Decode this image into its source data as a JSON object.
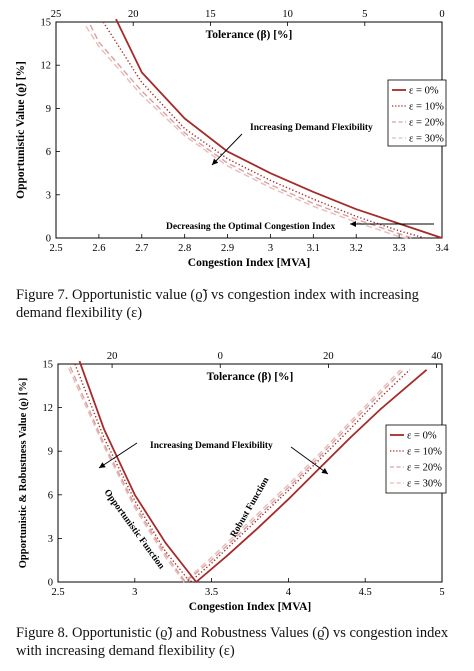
{
  "figures": [
    {
      "caption": "Figure 7.  Opportunistic value (ϱ̃) vs congestion index with increasing demand flexibility (ε)",
      "chart_data": {
        "type": "line",
        "xlabel": "Congestion Index [MVA]",
        "ylabel": "Opportunistic Value (ϱ̃) [%]",
        "x2label": "Tolerance (β) [%]",
        "xlim": [
          2.5,
          3.4
        ],
        "ylim": [
          0,
          15
        ],
        "x2lim": [
          25,
          0
        ],
        "x_ticks": [
          2.5,
          2.6,
          2.7,
          2.8,
          2.9,
          3.0,
          3.1,
          3.2,
          3.3,
          3.4
        ],
        "x_tick_labels": [
          "2.5",
          "2.6",
          "2.7",
          "2.8",
          "2.9",
          "3",
          "3.1",
          "3.2",
          "3.3",
          "3.4"
        ],
        "y_ticks": [
          0,
          3,
          6,
          9,
          12,
          15
        ],
        "y_tick_labels": [
          "0",
          "3",
          "6",
          "9",
          "12",
          "15"
        ],
        "x2_ticks": [
          25,
          20,
          15,
          10,
          5,
          0
        ],
        "x2_tick_labels": [
          "25",
          "20",
          "15",
          "10",
          "5",
          "0"
        ],
        "legend_position": "right",
        "grid": false,
        "annotations": [
          "Increasing Demand Flexibility",
          "Decreasing the Optimal Congestion Index"
        ],
        "series": [
          {
            "name": "ε = 0%",
            "style": "solid",
            "color": "#a52a2a",
            "x": [
              2.64,
              2.7,
              2.8,
              2.9,
              3.0,
              3.1,
              3.2,
              3.3,
              3.4
            ],
            "y": [
              15.2,
              11.5,
              8.3,
              6.0,
              4.5,
              3.2,
              2.0,
              1.0,
              0.0
            ]
          },
          {
            "name": "ε = 10%",
            "style": "dotted",
            "color": "#a52a2a",
            "x": [
              2.61,
              2.7,
              2.8,
              2.9,
              3.0,
              3.1,
              3.2,
              3.3,
              3.36
            ],
            "y": [
              15.0,
              10.8,
              7.6,
              5.5,
              4.0,
              2.7,
              1.5,
              0.5,
              0.0
            ]
          },
          {
            "name": "ε = 20%",
            "style": "dashed",
            "color": "#d9a0a0",
            "x": [
              2.58,
              2.6,
              2.7,
              2.8,
              2.9,
              3.0,
              3.1,
              3.2,
              3.3,
              3.33
            ],
            "y": [
              14.8,
              13.6,
              10.2,
              7.3,
              5.2,
              3.7,
              2.4,
              1.3,
              0.3,
              0.0
            ]
          },
          {
            "name": "ε = 30%",
            "style": "dashed",
            "color": "#e8bcbc",
            "x": [
              2.57,
              2.6,
              2.7,
              2.8,
              2.9,
              3.0,
              3.1,
              3.2,
              3.3,
              3.32
            ],
            "y": [
              14.7,
              13.3,
              9.9,
              7.1,
              5.0,
              3.5,
              2.2,
              1.1,
              0.1,
              0.0
            ]
          }
        ]
      }
    },
    {
      "caption": "Figure 8.  Opportunistic (ϱ̃) and Robustness Values (ϱ̂) vs congestion index with increasing demand flexibility (ε)",
      "chart_data": {
        "type": "line",
        "xlabel": "Congestion Index [MVA]",
        "ylabel": "Opportunistic & Robustness Value (ϱ) [%]",
        "x2label": "Tolerance (β) [%]",
        "xlim": [
          2.5,
          5
        ],
        "ylim": [
          0,
          15
        ],
        "x2lim": [
          30,
          -41
        ],
        "x_ticks": [
          2.5,
          3.0,
          3.5,
          4.0,
          4.5,
          5.0
        ],
        "x_tick_labels": [
          "2.5",
          "3",
          "3.5",
          "4",
          "4.5",
          "5"
        ],
        "y_ticks": [
          0,
          3,
          6,
          9,
          12,
          15
        ],
        "y_tick_labels": [
          "0",
          "3",
          "6",
          "9",
          "12",
          "15"
        ],
        "x2_ticks": [
          20,
          0,
          -20,
          -40
        ],
        "x2_tick_labels": [
          "20",
          "0",
          "20",
          "40"
        ],
        "legend_position": "right",
        "grid": false,
        "annotations": [
          "Increasing Demand Flexibility",
          "Opportunistic Function",
          "Robust Function"
        ],
        "series": [
          {
            "name": "ε = 0%",
            "style": "solid",
            "color": "#a52a2a",
            "x": [
              2.64,
              2.8,
              3.0,
              3.2,
              3.4,
              3.6,
              3.8,
              4.0,
              4.2,
              4.4,
              4.6,
              4.9
            ],
            "y": [
              15.2,
              10.5,
              6.0,
              2.7,
              0.0,
              1.8,
              3.7,
              5.7,
              7.8,
              9.9,
              11.9,
              14.6
            ]
          },
          {
            "name": "ε = 10%",
            "style": "dotted",
            "color": "#a52a2a",
            "x": [
              2.61,
              2.8,
              3.0,
              3.2,
              3.36,
              3.5,
              3.7,
              4.0,
              4.2,
              4.4,
              4.6,
              4.79
            ],
            "y": [
              15.0,
              9.9,
              5.6,
              2.1,
              0.0,
              1.3,
              3.3,
              6.3,
              8.4,
              10.5,
              12.7,
              14.6
            ]
          },
          {
            "name": "ε = 20%",
            "style": "dashed",
            "color": "#d9a0a0",
            "x": [
              2.58,
              2.8,
              3.0,
              3.2,
              3.33,
              3.5,
              3.7,
              4.0,
              4.2,
              4.4,
              4.6,
              4.75
            ],
            "y": [
              14.8,
              9.5,
              5.3,
              1.9,
              0.0,
              1.5,
              3.5,
              6.5,
              8.6,
              10.8,
              13.0,
              14.6
            ]
          },
          {
            "name": "ε = 30%",
            "style": "dashed",
            "color": "#e8bcbc",
            "x": [
              2.57,
              2.8,
              3.0,
              3.2,
              3.32,
              3.5,
              3.7,
              4.0,
              4.2,
              4.4,
              4.6,
              4.73
            ],
            "y": [
              14.7,
              9.3,
              5.1,
              1.7,
              0.0,
              1.7,
              3.7,
              6.7,
              8.8,
              11.0,
              13.2,
              14.6
            ]
          }
        ]
      }
    }
  ]
}
